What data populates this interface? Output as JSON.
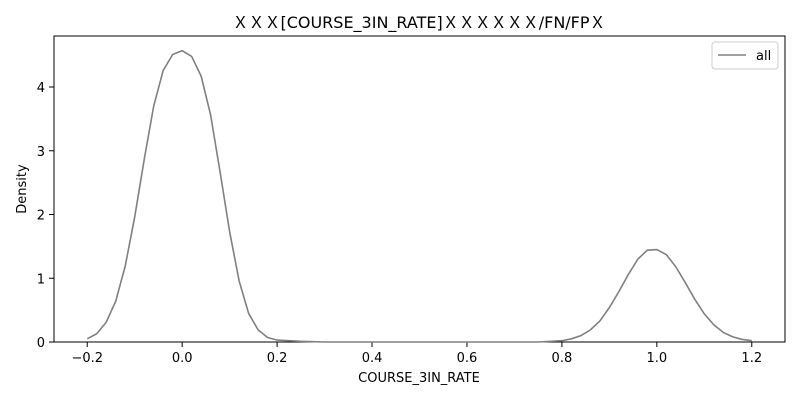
{
  "chart_data": {
    "type": "line",
    "title": "ＸＸＸ[COURSE_3IN_RATE]ＸＸＸＸＸＸ/FN/FPＸ",
    "xlabel": "COURSE_3IN_RATE",
    "ylabel": "Density",
    "xlim": [
      -0.27,
      1.27
    ],
    "ylim": [
      0,
      4.8
    ],
    "xticks": [
      -0.2,
      0.0,
      0.2,
      0.4,
      0.6,
      0.8,
      1.0,
      1.2
    ],
    "xtick_labels": [
      "−0.2",
      "0.0",
      "0.2",
      "0.4",
      "0.6",
      "0.8",
      "1.0",
      "1.2"
    ],
    "yticks": [
      0,
      1,
      2,
      3,
      4
    ],
    "ytick_labels": [
      "0",
      "1",
      "2",
      "3",
      "4"
    ],
    "grid": false,
    "legend_position": "top-right",
    "series": [
      {
        "name": "all",
        "color": "#808080",
        "x": [
          -0.2,
          -0.18,
          -0.16,
          -0.14,
          -0.12,
          -0.1,
          -0.08,
          -0.06,
          -0.04,
          -0.02,
          0.0,
          0.02,
          0.04,
          0.06,
          0.08,
          0.1,
          0.12,
          0.14,
          0.16,
          0.18,
          0.2,
          0.25,
          0.3,
          0.4,
          0.5,
          0.6,
          0.7,
          0.75,
          0.8,
          0.82,
          0.84,
          0.86,
          0.88,
          0.9,
          0.92,
          0.94,
          0.96,
          0.98,
          1.0,
          1.02,
          1.04,
          1.06,
          1.08,
          1.1,
          1.12,
          1.14,
          1.16,
          1.18,
          1.2
        ],
        "y": [
          0.05,
          0.13,
          0.31,
          0.64,
          1.19,
          1.96,
          2.86,
          3.7,
          4.26,
          4.51,
          4.57,
          4.48,
          4.17,
          3.56,
          2.66,
          1.73,
          0.96,
          0.45,
          0.19,
          0.07,
          0.03,
          0.01,
          0.0,
          0.0,
          0.0,
          0.0,
          0.0,
          0.0,
          0.02,
          0.05,
          0.1,
          0.19,
          0.33,
          0.54,
          0.79,
          1.06,
          1.3,
          1.44,
          1.45,
          1.37,
          1.18,
          0.93,
          0.67,
          0.44,
          0.27,
          0.15,
          0.08,
          0.04,
          0.02
        ]
      }
    ]
  }
}
